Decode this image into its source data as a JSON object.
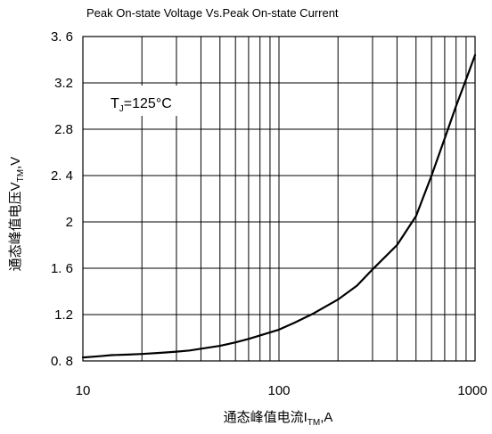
{
  "chart_data": {
    "type": "line",
    "title": "Peak On-state Voltage Vs.Peak On-state Current",
    "xlabel": {
      "main": "通态峰值电流I",
      "sub": "TM",
      "tail": ",A"
    },
    "ylabel": {
      "main": "通态峰值电压V",
      "sub": "TM",
      "tail": ",V"
    },
    "x_scale": "log",
    "xlim": [
      10,
      1000
    ],
    "ylim": [
      0.8,
      3.6
    ],
    "x_ticks": [
      10,
      100,
      1000
    ],
    "x_tick_labels": [
      "10",
      "100",
      "1000"
    ],
    "y_ticks": [
      0.8,
      1.2,
      1.6,
      2.0,
      2.4,
      2.8,
      3.2,
      3.6
    ],
    "y_tick_labels": [
      "0. 8",
      "1.2",
      "1. 6",
      "2",
      "2. 4",
      "2.8",
      "3.2",
      "3. 6"
    ],
    "grid": true,
    "annotation": {
      "main": "T",
      "sub": "J",
      "tail": "=125°C"
    },
    "series": [
      {
        "x": [
          10,
          12,
          14,
          17,
          20,
          25,
          30,
          35,
          40,
          50,
          60,
          70,
          80,
          100,
          120,
          150,
          200,
          250,
          300,
          400,
          500,
          600,
          700,
          800,
          900,
          1000
        ],
        "y": [
          0.83,
          0.84,
          0.85,
          0.855,
          0.86,
          0.87,
          0.88,
          0.89,
          0.905,
          0.93,
          0.96,
          0.99,
          1.02,
          1.07,
          1.13,
          1.21,
          1.33,
          1.45,
          1.59,
          1.8,
          2.05,
          2.4,
          2.72,
          3.0,
          3.23,
          3.44
        ]
      }
    ]
  }
}
